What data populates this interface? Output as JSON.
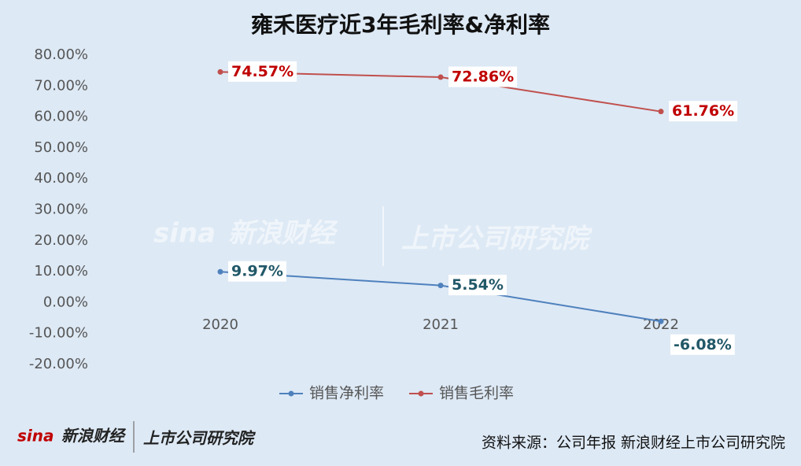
{
  "chart_data": {
    "type": "line",
    "title": "雍禾医疗近3年毛利率&净利率",
    "categories": [
      "2020",
      "2021",
      "2022"
    ],
    "series": [
      {
        "name": "销售净利率",
        "color": "#4f81bd",
        "label_color": "#215868",
        "values": [
          9.97,
          5.54,
          -6.08
        ],
        "value_labels": [
          "9.97%",
          "5.54%",
          "-6.08%"
        ]
      },
      {
        "name": "销售毛利率",
        "color": "#c0504d",
        "label_color": "#c00000",
        "values": [
          74.57,
          72.86,
          61.76
        ],
        "value_labels": [
          "74.57%",
          "72.86%",
          "61.76%"
        ]
      }
    ],
    "ylim": [
      -20,
      80
    ],
    "yticks": [
      {
        "value": -20,
        "label": "-20.00%"
      },
      {
        "value": -10,
        "label": "-10.00%"
      },
      {
        "value": 0,
        "label": "0.00%"
      },
      {
        "value": 10,
        "label": "10.00%"
      },
      {
        "value": 20,
        "label": "20.00%"
      },
      {
        "value": 30,
        "label": "30.00%"
      },
      {
        "value": 40,
        "label": "40.00%"
      },
      {
        "value": 50,
        "label": "50.00%"
      },
      {
        "value": 60,
        "label": "60.00%"
      },
      {
        "value": 70,
        "label": "70.00%"
      },
      {
        "value": 80,
        "label": "80.00%"
      }
    ],
    "grid": false,
    "legend": "bottom",
    "source": "资料来源：公司年报 新浪财经上市公司研究院"
  },
  "watermark": [
    "sina",
    "新浪财经",
    "上市公司研究院"
  ],
  "logo": [
    "sina",
    "新浪财经",
    "上市公司研究院"
  ]
}
